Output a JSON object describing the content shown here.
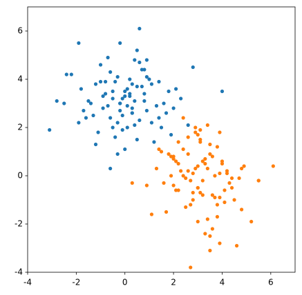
{
  "chart_data": {
    "type": "scatter",
    "xlim": [
      -4,
      7
    ],
    "ylim": [
      -4,
      7
    ],
    "xticks": [
      -4,
      -2,
      0,
      2,
      4,
      6
    ],
    "yticks": [
      -4,
      -2,
      0,
      2,
      4,
      6
    ],
    "series": [
      {
        "color": "#1f77b4",
        "x": [
          -0.5,
          0.3,
          -1.2,
          0.8,
          0.1,
          -0.3,
          1.1,
          -0.9,
          0.5,
          -0.1,
          0.7,
          -1.5,
          0.2,
          -0.6,
          1.4,
          -0.2,
          0.4,
          -1.0,
          0.9,
          0.0,
          -0.4,
          1.6,
          -1.8,
          0.6,
          -0.7,
          0.3,
          1.2,
          -1.3,
          -0.1,
          0.5,
          -0.8,
          2.0,
          -2.2,
          0.1,
          0.8,
          -0.5,
          1.0,
          -0.2,
          -1.1,
          0.4,
          0.2,
          -0.3,
          1.3,
          -1.6,
          0.7,
          -0.9,
          0.0,
          1.8,
          -0.6,
          0.3,
          -1.4,
          0.9,
          -0.2,
          0.5,
          -2.5,
          1.5,
          -0.4,
          0.1,
          -0.7,
          2.3,
          -1.9,
          0.6,
          -0.1,
          1.1,
          -1.2,
          0.4,
          0.2,
          -0.8,
          1.7,
          -0.3,
          -3.1,
          4.0,
          2.8,
          0.6,
          -1.9,
          -2.8,
          2.6,
          -2.4,
          1.9,
          -0.5,
          0.8,
          0.0,
          -1.0,
          1.4,
          -0.6,
          0.3,
          2.1,
          -1.7,
          0.9,
          -0.2
        ],
        "values": [
          3.2,
          2.6,
          3.8,
          3.4,
          2.9,
          4.1,
          2.2,
          2.8,
          3.7,
          1.9,
          4.4,
          3.1,
          3.3,
          2.4,
          3.9,
          3.0,
          2.1,
          4.6,
          2.7,
          3.5,
          1.6,
          3.0,
          3.6,
          2.3,
          4.9,
          3.8,
          1.4,
          2.5,
          3.2,
          5.2,
          3.9,
          2.8,
          4.2,
          2.0,
          3.1,
          3.5,
          4.0,
          2.7,
          1.8,
          4.8,
          3.4,
          2.2,
          2.9,
          2.4,
          3.7,
          3.3,
          1.1,
          3.5,
          4.3,
          2.6,
          3.0,
          4.1,
          5.5,
          1.5,
          3.0,
          2.0,
          3.9,
          3.6,
          2.9,
          3.2,
          2.2,
          4.7,
          2.5,
          3.8,
          1.3,
          3.1,
          4.0,
          3.4,
          2.6,
          0.9,
          1.9,
          3.5,
          4.5,
          6.1,
          5.5,
          3.1,
          2.1,
          4.2,
          1.7,
          2.0,
          4.4,
          3.3,
          3.9,
          2.4,
          0.3,
          2.8,
          3.6,
          2.7,
          4.8,
          3.0
        ]
      },
      {
        "color": "#ff7f0e",
        "x": [
          3.2,
          2.6,
          3.8,
          3.4,
          2.9,
          4.1,
          2.2,
          2.8,
          3.7,
          1.9,
          4.4,
          3.1,
          3.3,
          2.4,
          3.9,
          3.0,
          2.1,
          4.6,
          2.7,
          3.5,
          1.6,
          3.0,
          3.6,
          2.3,
          4.9,
          3.8,
          1.4,
          2.5,
          3.2,
          5.2,
          3.9,
          2.8,
          4.2,
          2.0,
          3.1,
          3.5,
          4.0,
          2.7,
          1.8,
          4.8,
          3.4,
          2.2,
          2.9,
          2.4,
          3.7,
          3.3,
          1.1,
          3.5,
          4.3,
          2.6,
          3.0,
          4.1,
          5.5,
          1.5,
          3.0,
          2.0,
          3.9,
          3.6,
          2.9,
          3.2,
          2.2,
          4.7,
          2.5,
          3.8,
          1.3,
          3.1,
          4.0,
          3.4,
          2.6,
          0.9,
          1.9,
          3.5,
          4.5,
          6.1,
          5.5,
          3.1,
          2.1,
          4.2,
          1.7,
          2.0,
          4.4,
          3.3,
          3.9,
          2.4,
          0.3,
          2.8,
          3.6,
          2.7,
          4.8,
          3.0
        ],
        "values": [
          -0.2,
          0.9,
          -1.7,
          2.1,
          0.3,
          -0.6,
          1.4,
          -1.0,
          0.0,
          0.8,
          -0.5,
          1.9,
          -2.4,
          2.4,
          -2.8,
          -1.9,
          0.6,
          -2.9,
          -3.8,
          -3.1,
          -0.3,
          1.7,
          -0.8,
          0.2,
          0.4,
          -1.2,
          1.1,
          -0.1,
          0.6,
          -1.9,
          1.8,
          -0.7,
          0.1,
          -0.4,
          1.5,
          -2.5,
          0.5,
          -0.2,
          0.9,
          -1.4,
          0.3,
          -0.6,
          1.8,
          0.0,
          -0.9,
          0.7,
          -1.6,
          1.3,
          -0.3,
          0.2,
          0.4,
          -1.1,
          -0.2,
          1.0,
          -0.5,
          0.8,
          0.1,
          -2.2,
          2.0,
          -0.8,
          0.5,
          -0.1,
          -1.3,
          1.2,
          0.3,
          -0.7,
          0.6,
          -1.8,
          1.6,
          -0.4,
          0.0,
          0.9,
          -1.0,
          0.4,
          -0.2,
          1.4,
          -0.6,
          0.2,
          -1.5,
          0.7,
          -0.1,
          0.5,
          -0.9,
          1.1,
          -0.3,
          0.1,
          0.8,
          -1.2,
          0.3,
          -0.5
        ]
      }
    ]
  }
}
